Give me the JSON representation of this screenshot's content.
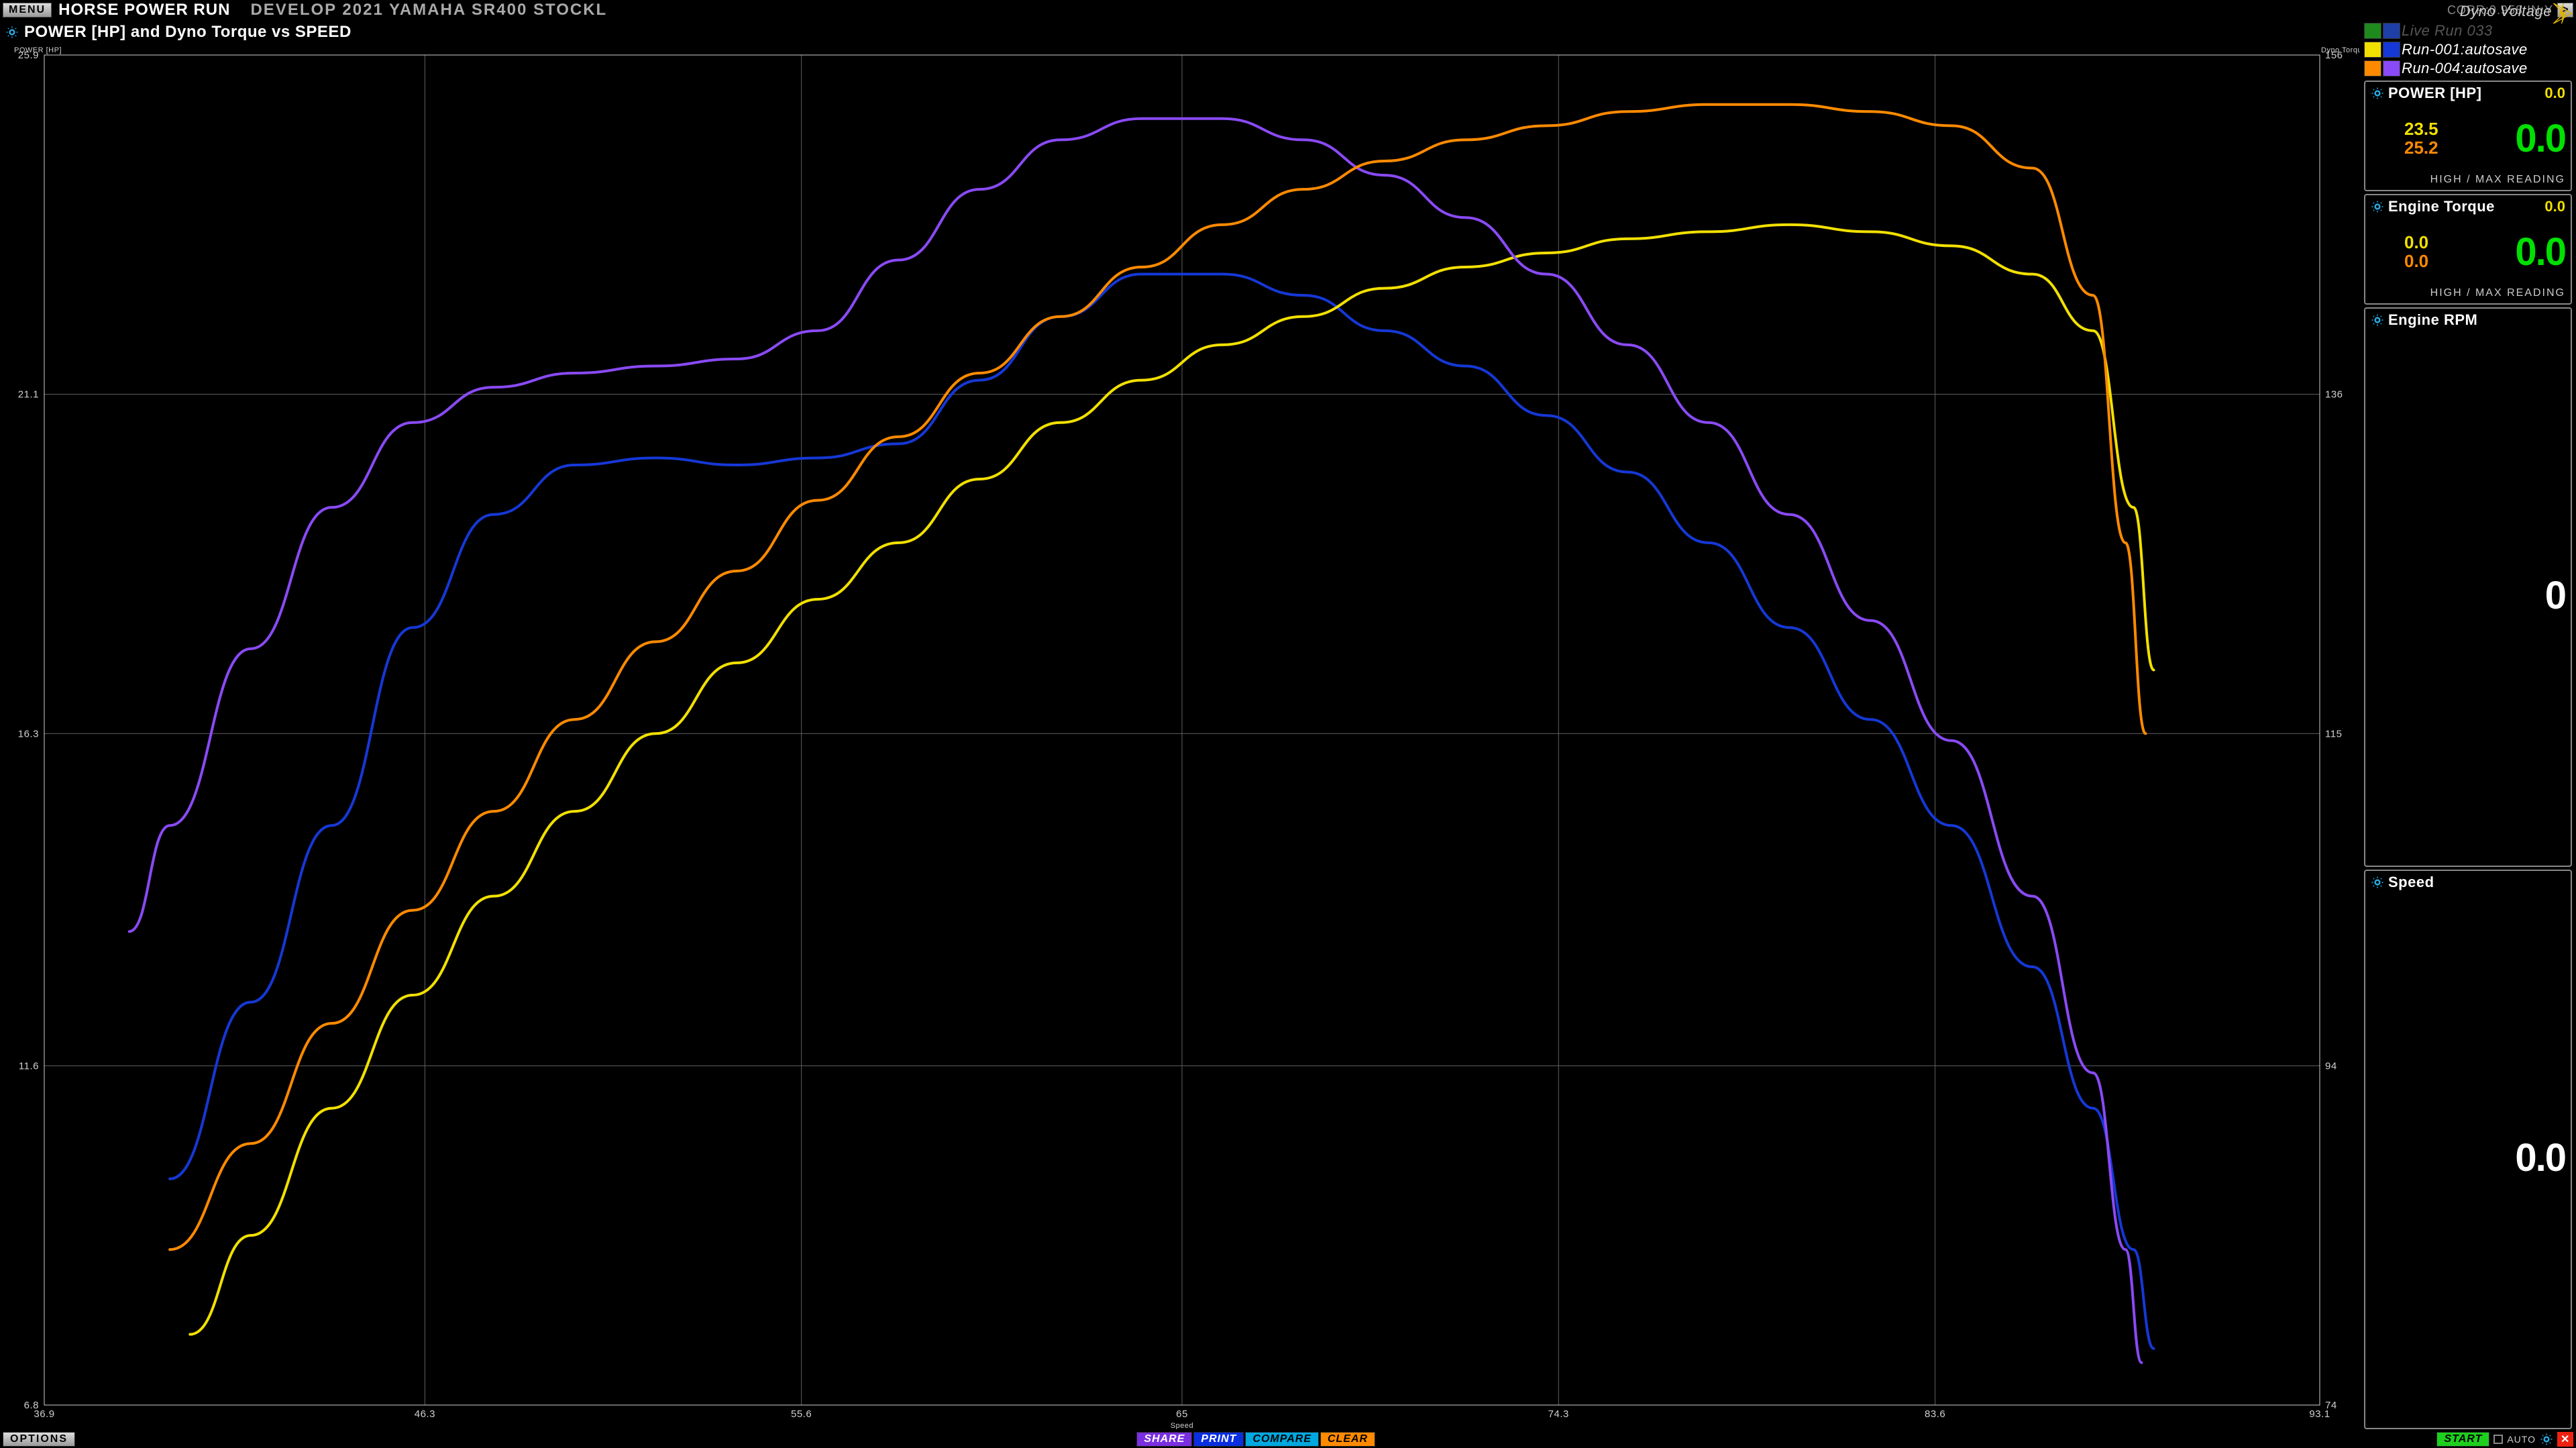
{
  "header": {
    "menu_label": "MENU",
    "title_left": "HORSE POWER RUN",
    "title_right": "DEVELOP 2021 YAMAHA SR400 STOCKL",
    "corr": "CORR:0.958 IN:Y",
    "next_label": ">"
  },
  "legend": {
    "voltage_label": "Dyno Voltage",
    "items": [
      {
        "swatches": [
          "#1e8a1e",
          "#1e3fa8"
        ],
        "label": "Live Run 033",
        "muted": true
      },
      {
        "swatches": [
          "#f2e000",
          "#1538d6"
        ],
        "label": "Run-001:autosave",
        "muted": false
      },
      {
        "swatches": [
          "#ff8a00",
          "#8a4af5"
        ],
        "label": "Run-004:autosave",
        "muted": false
      }
    ]
  },
  "chart": {
    "title": "POWER [HP] and Dyno Torque vs SPEED",
    "y_left_label": "POWER [HP]",
    "y_right_label": "Dyno Torque",
    "x_label": "Speed",
    "background": "#000000",
    "grid_color": "#606060",
    "axis_color": "#d0d0d0",
    "tick_color": "#d0d0d0",
    "tick_fontsize": 15,
    "title_fontsize": 24,
    "line_width": 4,
    "x": {
      "min": 36.9,
      "max": 93.1,
      "ticks": [
        36.9,
        46.3,
        55.6,
        65.0,
        74.3,
        83.6,
        93.1
      ]
    },
    "y_left": {
      "min": 6.8,
      "max": 25.9,
      "ticks": [
        6.8,
        11.6,
        16.3,
        21.1,
        25.9
      ]
    },
    "y_right": {
      "min": 74,
      "max": 156,
      "ticks": [
        74,
        94,
        115,
        136,
        156
      ]
    },
    "series": [
      {
        "name": "run001-torque",
        "axis": "left",
        "color": "#1538d6",
        "pts": [
          [
            40.0,
            10.0
          ],
          [
            42.0,
            12.5
          ],
          [
            44.0,
            15.0
          ],
          [
            46.0,
            17.8
          ],
          [
            48.0,
            19.4
          ],
          [
            50.0,
            20.1
          ],
          [
            52.0,
            20.2
          ],
          [
            54.0,
            20.1
          ],
          [
            56.0,
            20.2
          ],
          [
            58.0,
            20.4
          ],
          [
            60.0,
            21.3
          ],
          [
            62.0,
            22.2
          ],
          [
            64.0,
            22.8
          ],
          [
            66.0,
            22.8
          ],
          [
            68.0,
            22.5
          ],
          [
            70.0,
            22.0
          ],
          [
            72.0,
            21.5
          ],
          [
            74.0,
            20.8
          ],
          [
            76.0,
            20.0
          ],
          [
            78.0,
            19.0
          ],
          [
            80.0,
            17.8
          ],
          [
            82.0,
            16.5
          ],
          [
            84.0,
            15.0
          ],
          [
            86.0,
            13.0
          ],
          [
            87.5,
            11.0
          ],
          [
            88.5,
            9.0
          ],
          [
            89.0,
            7.6
          ]
        ]
      },
      {
        "name": "run001-power",
        "axis": "left",
        "color": "#f2e000",
        "pts": [
          [
            40.5,
            7.8
          ],
          [
            42.0,
            9.2
          ],
          [
            44.0,
            11.0
          ],
          [
            46.0,
            12.6
          ],
          [
            48.0,
            14.0
          ],
          [
            50.0,
            15.2
          ],
          [
            52.0,
            16.3
          ],
          [
            54.0,
            17.3
          ],
          [
            56.0,
            18.2
          ],
          [
            58.0,
            19.0
          ],
          [
            60.0,
            19.9
          ],
          [
            62.0,
            20.7
          ],
          [
            64.0,
            21.3
          ],
          [
            66.0,
            21.8
          ],
          [
            68.0,
            22.2
          ],
          [
            70.0,
            22.6
          ],
          [
            72.0,
            22.9
          ],
          [
            74.0,
            23.1
          ],
          [
            76.0,
            23.3
          ],
          [
            78.0,
            23.4
          ],
          [
            80.0,
            23.5
          ],
          [
            82.0,
            23.4
          ],
          [
            84.0,
            23.2
          ],
          [
            86.0,
            22.8
          ],
          [
            87.5,
            22.0
          ],
          [
            88.5,
            19.5
          ],
          [
            89.0,
            17.2
          ]
        ]
      },
      {
        "name": "run004-torque",
        "axis": "left",
        "color": "#8a4af5",
        "pts": [
          [
            39.0,
            13.5
          ],
          [
            40.0,
            15.0
          ],
          [
            42.0,
            17.5
          ],
          [
            44.0,
            19.5
          ],
          [
            46.0,
            20.7
          ],
          [
            48.0,
            21.2
          ],
          [
            50.0,
            21.4
          ],
          [
            52.0,
            21.5
          ],
          [
            54.0,
            21.6
          ],
          [
            56.0,
            22.0
          ],
          [
            58.0,
            23.0
          ],
          [
            60.0,
            24.0
          ],
          [
            62.0,
            24.7
          ],
          [
            64.0,
            25.0
          ],
          [
            66.0,
            25.0
          ],
          [
            68.0,
            24.7
          ],
          [
            70.0,
            24.2
          ],
          [
            72.0,
            23.6
          ],
          [
            74.0,
            22.8
          ],
          [
            76.0,
            21.8
          ],
          [
            78.0,
            20.7
          ],
          [
            80.0,
            19.4
          ],
          [
            82.0,
            17.9
          ],
          [
            84.0,
            16.2
          ],
          [
            86.0,
            14.0
          ],
          [
            87.5,
            11.5
          ],
          [
            88.3,
            9.0
          ],
          [
            88.7,
            7.4
          ]
        ]
      },
      {
        "name": "run004-power",
        "axis": "left",
        "color": "#ff8a00",
        "pts": [
          [
            40.0,
            9.0
          ],
          [
            42.0,
            10.5
          ],
          [
            44.0,
            12.2
          ],
          [
            46.0,
            13.8
          ],
          [
            48.0,
            15.2
          ],
          [
            50.0,
            16.5
          ],
          [
            52.0,
            17.6
          ],
          [
            54.0,
            18.6
          ],
          [
            56.0,
            19.6
          ],
          [
            58.0,
            20.5
          ],
          [
            60.0,
            21.4
          ],
          [
            62.0,
            22.2
          ],
          [
            64.0,
            22.9
          ],
          [
            66.0,
            23.5
          ],
          [
            68.0,
            24.0
          ],
          [
            70.0,
            24.4
          ],
          [
            72.0,
            24.7
          ],
          [
            74.0,
            24.9
          ],
          [
            76.0,
            25.1
          ],
          [
            78.0,
            25.2
          ],
          [
            80.0,
            25.2
          ],
          [
            82.0,
            25.1
          ],
          [
            84.0,
            24.9
          ],
          [
            86.0,
            24.3
          ],
          [
            87.5,
            22.5
          ],
          [
            88.3,
            19.0
          ],
          [
            88.8,
            16.3
          ]
        ]
      }
    ]
  },
  "gauges": {
    "power": {
      "title": "POWER [HP]",
      "head_value": "0.0",
      "head_color": "#f2e000",
      "subs": [
        {
          "v": "23.5",
          "c": "#f2e000"
        },
        {
          "v": "25.2",
          "c": "#ff8a00"
        }
      ],
      "main": "0.0",
      "main_color": "#00e000",
      "footer": "HIGH / MAX READING"
    },
    "torque": {
      "title": "Engine Torque",
      "head_value": "0.0",
      "head_color": "#f2e000",
      "subs": [
        {
          "v": "0.0",
          "c": "#f2e000"
        },
        {
          "v": "0.0",
          "c": "#ff8a00"
        }
      ],
      "main": "0.0",
      "main_color": "#00e000",
      "footer": "HIGH / MAX READING"
    },
    "rpm": {
      "title": "Engine RPM",
      "main": "0",
      "main_color": "#ffffff"
    },
    "speed": {
      "title": "Speed",
      "main": "0.0",
      "main_color": "#ffffff"
    }
  },
  "footer": {
    "options": "OPTIONS",
    "share": {
      "label": "SHARE",
      "bg": "#7a2fe0"
    },
    "print": {
      "label": "PRINT",
      "bg": "#0a2fe0"
    },
    "compare": {
      "label": "COMPARE",
      "bg": "#00a8e0"
    },
    "clear": {
      "label": "CLEAR",
      "bg": "#ff8a00"
    },
    "start": {
      "label": "START",
      "bg": "#1ecf1e"
    },
    "auto": "AUTO"
  }
}
